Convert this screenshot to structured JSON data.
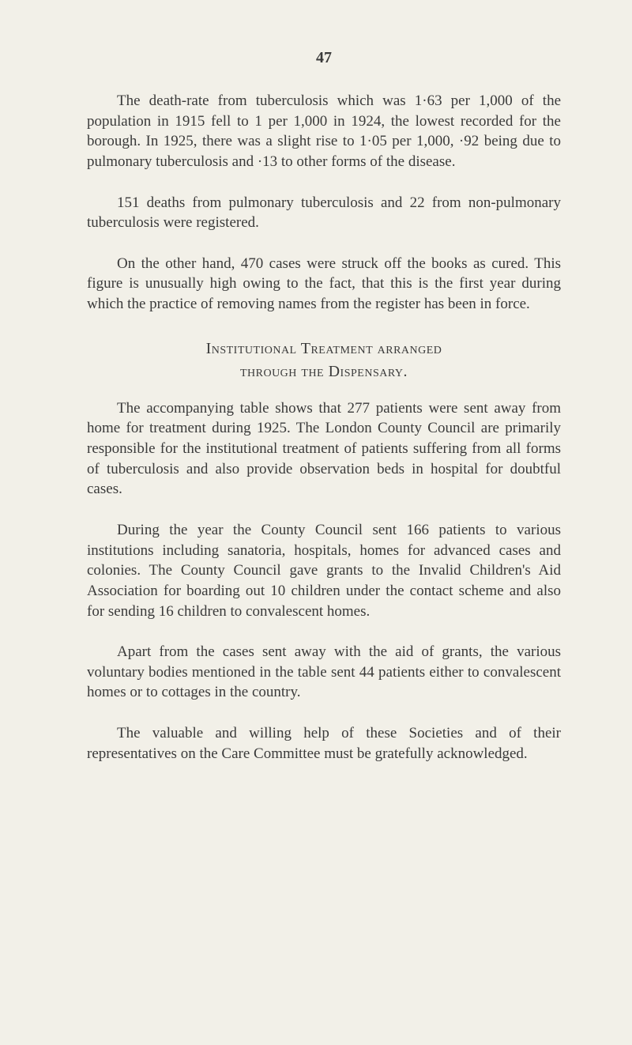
{
  "page": {
    "number": "47",
    "background_color": "#f2f0e8",
    "text_color": "#3a3a3a",
    "font_family": "Georgia, 'Times New Roman', serif",
    "body_fontsize": 19,
    "line_height": 1.35,
    "text_indent": 38,
    "paragraph_spacing": 26
  },
  "paragraphs": {
    "p1": "The death-rate from tuberculosis which was 1·63 per 1,000 of the population in 1915 fell to 1 per 1,000 in 1924, the lowest recorded for the borough. In 1925, there was a slight rise to 1·05 per 1,000, ·92 being due to pulmonary tuberculosis and ·13 to other forms of the disease.",
    "p2": "151 deaths from pulmonary tuberculosis and 22 from non-pulmonary tuberculosis were registered.",
    "p3": "On the other hand, 470 cases were struck off the books as cured. This figure is unusually high owing to the fact, that this is the first year during which the practice of removing names from the register has been in force.",
    "p4": "The accompanying table shows that 277 patients were sent away from home for treatment during 1925. The London County Council are primarily responsible for the institutional treatment of patients suffering from all forms of tuberculosis and also provide observation beds in hospital for doubtful cases.",
    "p5": "During the year the County Council sent 166 patients to various institutions including sanatoria, hospitals, homes for advanced cases and colonies. The County Council gave grants to the Invalid Children's Aid Association for boarding out 10 children under the contact scheme and also for sending 16 children to convalescent homes.",
    "p6": "Apart from the cases sent away with the aid of grants, the various voluntary bodies mentioned in the table sent 44 patients either to convalescent homes or to cottages in the country.",
    "p7": "The valuable and willing help of these Societies and of their representatives on the Care Committee must be gratefully acknowledged."
  },
  "heading": {
    "line1": "Institutional Treatment arranged",
    "line2": "through the Dispensary.",
    "fontsize": 20,
    "style": "small-caps"
  }
}
